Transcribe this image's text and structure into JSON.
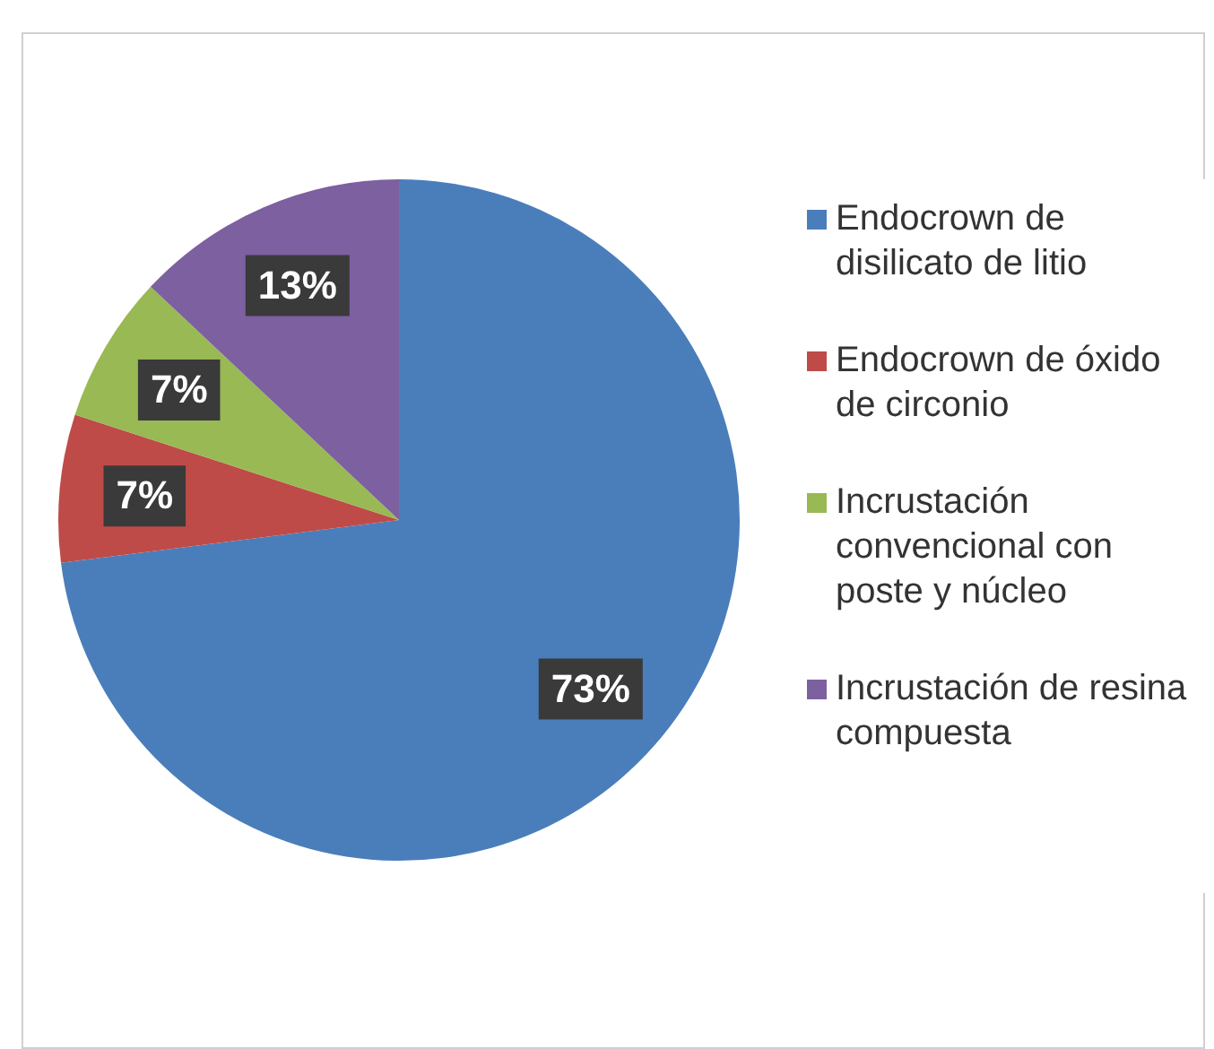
{
  "chart_data": {
    "type": "pie",
    "categories": [
      "Endocrown de disilicato de litio",
      "Endocrown de óxido de circonio",
      "Incrustación convencional con poste y núcleo",
      "Incrustación de resina compuesta"
    ],
    "values": [
      73,
      7,
      7,
      13
    ],
    "colors": [
      "#4a7ebb",
      "#be4b48",
      "#98b954",
      "#7d60a0"
    ],
    "value_labels": [
      "73%",
      "7%",
      "7%",
      "13%"
    ],
    "legend": "right"
  }
}
